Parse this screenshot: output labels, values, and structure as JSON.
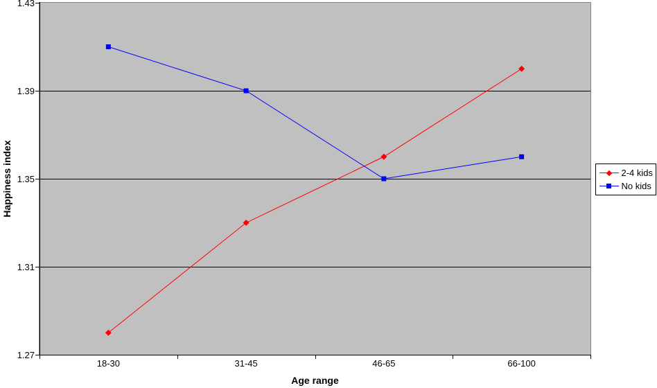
{
  "chart_data": {
    "type": "line",
    "categories": [
      "18-30",
      "31-45",
      "46-65",
      "66-100"
    ],
    "series": [
      {
        "name": "2-4 kids",
        "color": "#ff0000",
        "marker": "diamond",
        "values": [
          1.28,
          1.33,
          1.36,
          1.4
        ]
      },
      {
        "name": "No kids",
        "color": "#0000ff",
        "marker": "square",
        "values": [
          1.41,
          1.39,
          1.35,
          1.36
        ]
      }
    ],
    "xlabel": "Age range",
    "ylabel": "Happiness index",
    "ylim": [
      1.27,
      1.43
    ],
    "yticks": [
      "1.27",
      "1.31",
      "1.35",
      "1.39",
      "1.43"
    ],
    "grid": true,
    "legend_position": "right",
    "plot_bg_color": "#c0c0c0",
    "plot_border_color": "#848284",
    "gridline_color": "#000000",
    "axis_color": "#000000",
    "text_color": "#000000"
  }
}
